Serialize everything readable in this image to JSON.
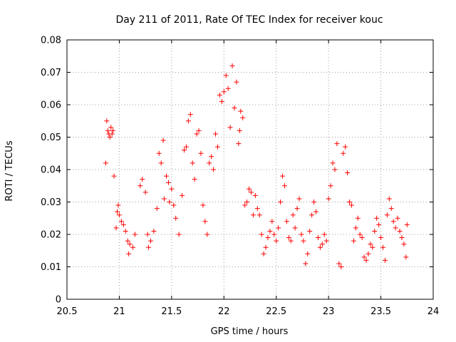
{
  "chart_data": {
    "type": "scatter",
    "title": "Day 211 of 2011, Rate Of TEC Index for receiver kouc",
    "xlabel": "GPS time / hours",
    "ylabel": "ROTI / TECUs",
    "xlim": [
      20.5,
      24
    ],
    "ylim": [
      0,
      0.08
    ],
    "xticks": [
      "20.5",
      "21",
      "21.5",
      "22",
      "22.5",
      "23",
      "23.5",
      "24"
    ],
    "yticks": [
      "0",
      "0.01",
      "0.02",
      "0.03",
      "0.04",
      "0.05",
      "0.06",
      "0.07",
      "0.08"
    ],
    "grid": true,
    "marker": "+",
    "marker_color": "#ff0000",
    "points": [
      [
        20.87,
        0.042
      ],
      [
        20.88,
        0.055
      ],
      [
        20.89,
        0.052
      ],
      [
        20.9,
        0.051
      ],
      [
        20.91,
        0.05
      ],
      [
        20.92,
        0.053
      ],
      [
        20.93,
        0.051
      ],
      [
        20.94,
        0.052
      ],
      [
        20.95,
        0.038
      ],
      [
        20.97,
        0.022
      ],
      [
        20.98,
        0.027
      ],
      [
        20.99,
        0.029
      ],
      [
        21.0,
        0.026
      ],
      [
        21.02,
        0.024
      ],
      [
        21.04,
        0.023
      ],
      [
        21.06,
        0.021
      ],
      [
        21.08,
        0.018
      ],
      [
        21.09,
        0.014
      ],
      [
        21.1,
        0.017
      ],
      [
        21.13,
        0.016
      ],
      [
        21.15,
        0.02
      ],
      [
        21.2,
        0.035
      ],
      [
        21.22,
        0.037
      ],
      [
        21.25,
        0.033
      ],
      [
        21.27,
        0.02
      ],
      [
        21.28,
        0.016
      ],
      [
        21.3,
        0.018
      ],
      [
        21.33,
        0.021
      ],
      [
        21.36,
        0.028
      ],
      [
        21.38,
        0.045
      ],
      [
        21.4,
        0.042
      ],
      [
        21.42,
        0.049
      ],
      [
        21.43,
        0.031
      ],
      [
        21.45,
        0.038
      ],
      [
        21.47,
        0.036
      ],
      [
        21.48,
        0.03
      ],
      [
        21.5,
        0.034
      ],
      [
        21.52,
        0.029
      ],
      [
        21.54,
        0.025
      ],
      [
        21.57,
        0.02
      ],
      [
        21.6,
        0.032
      ],
      [
        21.62,
        0.046
      ],
      [
        21.64,
        0.047
      ],
      [
        21.66,
        0.055
      ],
      [
        21.68,
        0.057
      ],
      [
        21.7,
        0.042
      ],
      [
        21.72,
        0.037
      ],
      [
        21.74,
        0.051
      ],
      [
        21.76,
        0.052
      ],
      [
        21.78,
        0.045
      ],
      [
        21.8,
        0.029
      ],
      [
        21.82,
        0.024
      ],
      [
        21.84,
        0.02
      ],
      [
        21.86,
        0.042
      ],
      [
        21.88,
        0.044
      ],
      [
        21.9,
        0.04
      ],
      [
        21.92,
        0.051
      ],
      [
        21.94,
        0.047
      ],
      [
        21.96,
        0.063
      ],
      [
        21.98,
        0.061
      ],
      [
        22.0,
        0.064
      ],
      [
        22.02,
        0.069
      ],
      [
        22.04,
        0.065
      ],
      [
        22.06,
        0.053
      ],
      [
        22.08,
        0.072
      ],
      [
        22.1,
        0.059
      ],
      [
        22.12,
        0.067
      ],
      [
        22.14,
        0.048
      ],
      [
        22.15,
        0.052
      ],
      [
        22.16,
        0.058
      ],
      [
        22.18,
        0.056
      ],
      [
        22.2,
        0.029
      ],
      [
        22.22,
        0.03
      ],
      [
        22.24,
        0.034
      ],
      [
        22.26,
        0.033
      ],
      [
        22.28,
        0.026
      ],
      [
        22.3,
        0.032
      ],
      [
        22.32,
        0.028
      ],
      [
        22.34,
        0.026
      ],
      [
        22.36,
        0.02
      ],
      [
        22.38,
        0.014
      ],
      [
        22.4,
        0.016
      ],
      [
        22.42,
        0.019
      ],
      [
        22.44,
        0.021
      ],
      [
        22.46,
        0.024
      ],
      [
        22.48,
        0.02
      ],
      [
        22.5,
        0.018
      ],
      [
        22.52,
        0.022
      ],
      [
        22.54,
        0.03
      ],
      [
        22.56,
        0.038
      ],
      [
        22.58,
        0.035
      ],
      [
        22.6,
        0.024
      ],
      [
        22.62,
        0.019
      ],
      [
        22.64,
        0.018
      ],
      [
        22.66,
        0.026
      ],
      [
        22.68,
        0.022
      ],
      [
        22.7,
        0.028
      ],
      [
        22.72,
        0.031
      ],
      [
        22.74,
        0.02
      ],
      [
        22.76,
        0.018
      ],
      [
        22.78,
        0.011
      ],
      [
        22.8,
        0.014
      ],
      [
        22.82,
        0.021
      ],
      [
        22.84,
        0.026
      ],
      [
        22.86,
        0.03
      ],
      [
        22.88,
        0.027
      ],
      [
        22.9,
        0.019
      ],
      [
        22.92,
        0.016
      ],
      [
        22.94,
        0.017
      ],
      [
        22.96,
        0.02
      ],
      [
        22.98,
        0.018
      ],
      [
        23.0,
        0.031
      ],
      [
        23.02,
        0.035
      ],
      [
        23.04,
        0.042
      ],
      [
        23.06,
        0.04
      ],
      [
        23.08,
        0.048
      ],
      [
        23.1,
        0.011
      ],
      [
        23.12,
        0.01
      ],
      [
        23.14,
        0.045
      ],
      [
        23.16,
        0.047
      ],
      [
        23.18,
        0.039
      ],
      [
        23.2,
        0.03
      ],
      [
        23.22,
        0.029
      ],
      [
        23.24,
        0.018
      ],
      [
        23.26,
        0.022
      ],
      [
        23.28,
        0.025
      ],
      [
        23.3,
        0.02
      ],
      [
        23.32,
        0.019
      ],
      [
        23.34,
        0.013
      ],
      [
        23.36,
        0.012
      ],
      [
        23.38,
        0.014
      ],
      [
        23.4,
        0.017
      ],
      [
        23.42,
        0.016
      ],
      [
        23.44,
        0.021
      ],
      [
        23.46,
        0.025
      ],
      [
        23.48,
        0.023
      ],
      [
        23.5,
        0.019
      ],
      [
        23.52,
        0.016
      ],
      [
        23.54,
        0.012
      ],
      [
        23.56,
        0.026
      ],
      [
        23.58,
        0.031
      ],
      [
        23.6,
        0.028
      ],
      [
        23.62,
        0.024
      ],
      [
        23.64,
        0.022
      ],
      [
        23.66,
        0.025
      ],
      [
        23.68,
        0.021
      ],
      [
        23.7,
        0.019
      ],
      [
        23.72,
        0.017
      ],
      [
        23.74,
        0.013
      ],
      [
        23.75,
        0.023
      ]
    ]
  }
}
